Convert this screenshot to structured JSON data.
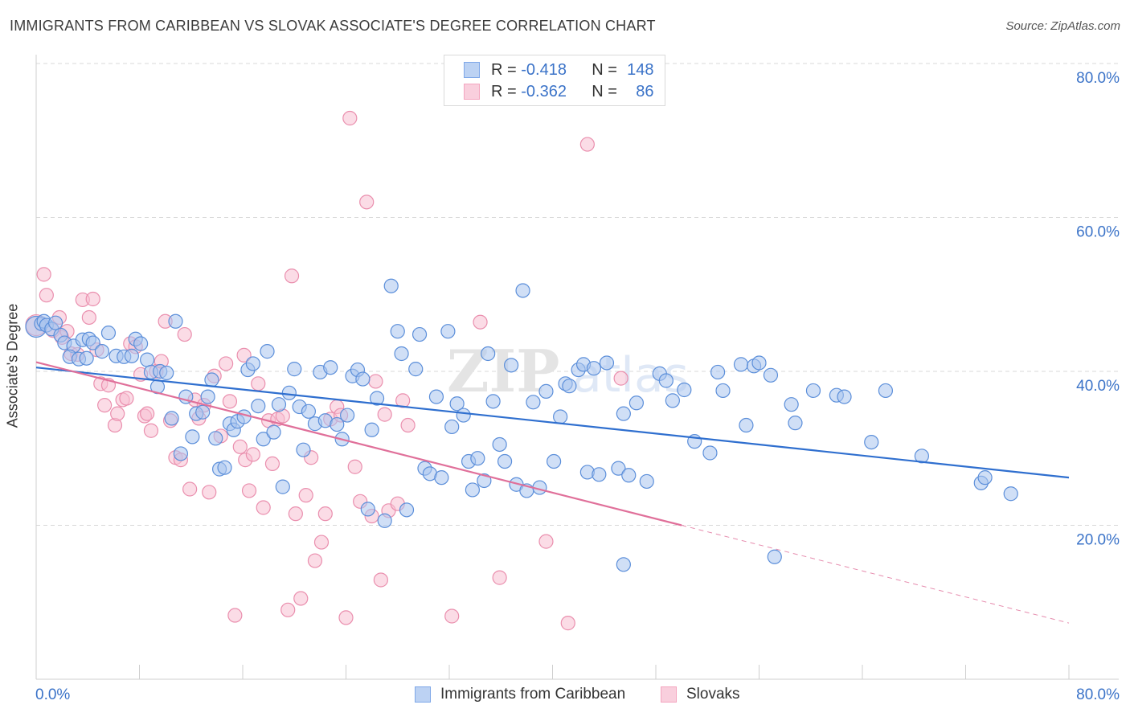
{
  "title": "IMMIGRANTS FROM CARIBBEAN VS SLOVAK ASSOCIATE'S DEGREE CORRELATION CHART",
  "source": "Source: ZipAtlas.com",
  "watermark": "ZIPatlas",
  "legend_top": [
    {
      "r_label": "R =",
      "r_value": "-0.418",
      "n_label": "N =",
      "n_value": "148",
      "color": "#7ea7e8"
    },
    {
      "r_label": "R =",
      "r_value": "-0.362",
      "n_label": "N =",
      "n_value": "86",
      "color": "#f4a5bf"
    }
  ],
  "legend_bottom": [
    {
      "label": "Immigrants from Caribbean",
      "color": "#7ea7e8"
    },
    {
      "label": "Slovaks",
      "color": "#f4a5bf"
    }
  ],
  "colors": {
    "blue_fill": "#a9c4ee",
    "blue_stroke": "#5c8fda",
    "blue_line": "#2f6fcf",
    "pink_fill": "#f7bfd1",
    "pink_stroke": "#ea8fae",
    "pink_line": "#e0709a",
    "axis_label": "#3b73c8",
    "grid": "#d8d8d8"
  },
  "chart_data": {
    "type": "scatter",
    "title": "IMMIGRANTS FROM CARIBBEAN VS SLOVAK ASSOCIATE'S DEGREE CORRELATION CHART",
    "xlabel": "",
    "ylabel": "Associate's Degree",
    "xlim": [
      0,
      80
    ],
    "ylim": [
      0,
      80
    ],
    "x_tick_labels": [
      "0.0%",
      "80.0%"
    ],
    "y_tick_labels": [
      "20.0%",
      "40.0%",
      "60.0%",
      "80.0%"
    ],
    "y_ticks": [
      20,
      40,
      60,
      80
    ],
    "grid": true,
    "legend_position": "bottom",
    "series": [
      {
        "name": "Immigrants from Caribbean",
        "trend": {
          "x": [
            0,
            80
          ],
          "y": [
            40.5,
            26.2
          ]
        },
        "points": [
          [
            0.0,
            45.8
          ],
          [
            0.4,
            46.2
          ],
          [
            0.6,
            46.5
          ],
          [
            0.8,
            46.0
          ],
          [
            1.2,
            45.5
          ],
          [
            1.5,
            46.3
          ],
          [
            1.9,
            44.7
          ],
          [
            2.2,
            43.7
          ],
          [
            2.9,
            43.3
          ],
          [
            2.6,
            41.9
          ],
          [
            3.3,
            41.6
          ],
          [
            3.9,
            41.7
          ],
          [
            3.6,
            44.1
          ],
          [
            4.1,
            44.2
          ],
          [
            4.4,
            43.7
          ],
          [
            5.1,
            42.6
          ],
          [
            5.6,
            45.0
          ],
          [
            6.2,
            42.0
          ],
          [
            6.8,
            41.9
          ],
          [
            7.4,
            42.0
          ],
          [
            7.7,
            44.2
          ],
          [
            8.1,
            43.6
          ],
          [
            8.6,
            41.5
          ],
          [
            8.9,
            39.9
          ],
          [
            9.4,
            38.0
          ],
          [
            9.6,
            40.0
          ],
          [
            10.1,
            39.8
          ],
          [
            10.5,
            33.9
          ],
          [
            10.8,
            46.5
          ],
          [
            11.2,
            29.3
          ],
          [
            11.6,
            36.7
          ],
          [
            12.1,
            31.5
          ],
          [
            12.4,
            34.5
          ],
          [
            12.9,
            34.7
          ],
          [
            13.3,
            36.7
          ],
          [
            13.6,
            38.9
          ],
          [
            13.9,
            31.3
          ],
          [
            14.2,
            27.3
          ],
          [
            14.6,
            27.5
          ],
          [
            15.0,
            33.2
          ],
          [
            15.3,
            32.4
          ],
          [
            15.6,
            33.5
          ],
          [
            16.1,
            34.1
          ],
          [
            16.4,
            40.2
          ],
          [
            16.8,
            41.0
          ],
          [
            17.2,
            35.5
          ],
          [
            17.6,
            31.2
          ],
          [
            17.9,
            42.6
          ],
          [
            18.4,
            32.1
          ],
          [
            18.8,
            35.7
          ],
          [
            19.1,
            25.0
          ],
          [
            19.6,
            37.2
          ],
          [
            20.0,
            40.3
          ],
          [
            20.4,
            35.4
          ],
          [
            20.7,
            29.8
          ],
          [
            21.1,
            34.8
          ],
          [
            21.6,
            33.2
          ],
          [
            22.0,
            39.9
          ],
          [
            22.4,
            33.6
          ],
          [
            22.8,
            40.5
          ],
          [
            23.3,
            33.1
          ],
          [
            23.7,
            31.2
          ],
          [
            24.1,
            34.3
          ],
          [
            24.5,
            39.4
          ],
          [
            24.9,
            40.2
          ],
          [
            25.3,
            39.0
          ],
          [
            25.7,
            22.1
          ],
          [
            26.0,
            32.4
          ],
          [
            26.4,
            36.5
          ],
          [
            27.0,
            20.6
          ],
          [
            27.5,
            51.1
          ],
          [
            28.0,
            45.2
          ],
          [
            28.3,
            42.3
          ],
          [
            28.7,
            22.0
          ],
          [
            29.4,
            40.3
          ],
          [
            29.7,
            44.8
          ],
          [
            30.1,
            27.4
          ],
          [
            30.5,
            26.7
          ],
          [
            31.0,
            36.7
          ],
          [
            31.4,
            26.2
          ],
          [
            31.9,
            45.2
          ],
          [
            32.2,
            32.8
          ],
          [
            32.6,
            35.8
          ],
          [
            33.1,
            34.3
          ],
          [
            33.5,
            28.3
          ],
          [
            33.8,
            24.6
          ],
          [
            34.2,
            28.7
          ],
          [
            34.7,
            25.8
          ],
          [
            35.0,
            42.3
          ],
          [
            35.4,
            36.1
          ],
          [
            35.9,
            30.5
          ],
          [
            36.3,
            28.3
          ],
          [
            36.8,
            40.8
          ],
          [
            37.2,
            25.3
          ],
          [
            37.7,
            50.5
          ],
          [
            38.0,
            24.5
          ],
          [
            38.5,
            36.0
          ],
          [
            39.0,
            24.9
          ],
          [
            39.5,
            37.4
          ],
          [
            40.1,
            28.3
          ],
          [
            40.6,
            34.1
          ],
          [
            41.0,
            38.4
          ],
          [
            41.3,
            38.1
          ],
          [
            42.0,
            40.2
          ],
          [
            42.4,
            40.9
          ],
          [
            42.7,
            26.9
          ],
          [
            43.2,
            40.4
          ],
          [
            43.6,
            26.6
          ],
          [
            44.2,
            41.1
          ],
          [
            45.1,
            27.4
          ],
          [
            45.5,
            34.5
          ],
          [
            45.9,
            26.5
          ],
          [
            46.5,
            35.9
          ],
          [
            47.3,
            25.7
          ],
          [
            48.3,
            39.7
          ],
          [
            48.8,
            38.8
          ],
          [
            49.3,
            36.2
          ],
          [
            50.2,
            37.6
          ],
          [
            51.0,
            30.9
          ],
          [
            52.2,
            29.4
          ],
          [
            52.8,
            39.9
          ],
          [
            53.2,
            37.5
          ],
          [
            54.6,
            40.9
          ],
          [
            55.0,
            33.0
          ],
          [
            55.6,
            40.7
          ],
          [
            56.0,
            41.1
          ],
          [
            56.9,
            39.5
          ],
          [
            58.5,
            35.7
          ],
          [
            58.8,
            33.3
          ],
          [
            60.2,
            37.5
          ],
          [
            62.0,
            36.9
          ],
          [
            62.6,
            36.7
          ],
          [
            64.7,
            30.8
          ],
          [
            65.8,
            37.5
          ],
          [
            68.6,
            29.0
          ],
          [
            73.2,
            25.5
          ],
          [
            73.5,
            26.2
          ],
          [
            75.5,
            24.1
          ],
          [
            57.2,
            15.9
          ],
          [
            45.5,
            14.9
          ]
        ]
      },
      {
        "name": "Slovaks",
        "trend": {
          "x": [
            0,
            50
          ],
          "y": [
            41.2,
            20.0
          ]
        },
        "trend_extension": {
          "x": [
            50,
            80
          ],
          "y": [
            20.0,
            7.3
          ]
        },
        "points": [
          [
            0.0,
            46.0
          ],
          [
            0.6,
            52.6
          ],
          [
            0.8,
            49.9
          ],
          [
            1.3,
            45.3
          ],
          [
            1.8,
            47.0
          ],
          [
            2.0,
            44.4
          ],
          [
            2.4,
            45.2
          ],
          [
            2.7,
            42.3
          ],
          [
            3.2,
            42.2
          ],
          [
            3.6,
            49.3
          ],
          [
            4.1,
            47.0
          ],
          [
            4.4,
            49.4
          ],
          [
            4.7,
            42.8
          ],
          [
            5.0,
            38.4
          ],
          [
            5.3,
            35.6
          ],
          [
            5.6,
            38.2
          ],
          [
            6.1,
            33.0
          ],
          [
            6.3,
            34.5
          ],
          [
            6.7,
            36.3
          ],
          [
            7.0,
            36.5
          ],
          [
            7.3,
            43.6
          ],
          [
            7.7,
            43.2
          ],
          [
            8.1,
            39.6
          ],
          [
            8.4,
            34.2
          ],
          [
            8.6,
            34.5
          ],
          [
            8.9,
            32.3
          ],
          [
            9.3,
            40.0
          ],
          [
            9.7,
            41.3
          ],
          [
            10.0,
            46.5
          ],
          [
            10.4,
            33.6
          ],
          [
            10.8,
            28.8
          ],
          [
            11.2,
            28.5
          ],
          [
            11.5,
            44.8
          ],
          [
            11.9,
            24.7
          ],
          [
            12.3,
            36.3
          ],
          [
            12.6,
            33.9
          ],
          [
            13.0,
            35.6
          ],
          [
            13.4,
            24.3
          ],
          [
            13.8,
            39.4
          ],
          [
            14.3,
            31.6
          ],
          [
            14.7,
            41.0
          ],
          [
            15.0,
            36.1
          ],
          [
            15.4,
            8.3
          ],
          [
            15.8,
            30.2
          ],
          [
            16.2,
            28.5
          ],
          [
            16.5,
            24.5
          ],
          [
            16.8,
            29.2
          ],
          [
            17.2,
            38.4
          ],
          [
            17.6,
            22.3
          ],
          [
            18.0,
            33.6
          ],
          [
            18.3,
            28.0
          ],
          [
            18.7,
            33.8
          ],
          [
            19.1,
            34.2
          ],
          [
            19.5,
            9.0
          ],
          [
            19.8,
            52.4
          ],
          [
            20.1,
            21.5
          ],
          [
            20.5,
            10.5
          ],
          [
            20.9,
            23.9
          ],
          [
            21.3,
            28.8
          ],
          [
            21.6,
            15.4
          ],
          [
            22.1,
            17.8
          ],
          [
            22.4,
            21.5
          ],
          [
            22.8,
            33.8
          ],
          [
            23.3,
            35.4
          ],
          [
            23.6,
            34.3
          ],
          [
            24.0,
            8.0
          ],
          [
            24.3,
            72.9
          ],
          [
            24.7,
            27.6
          ],
          [
            25.1,
            23.1
          ],
          [
            25.6,
            62.0
          ],
          [
            26.0,
            21.2
          ],
          [
            26.3,
            38.7
          ],
          [
            26.7,
            12.9
          ],
          [
            27.0,
            34.4
          ],
          [
            27.3,
            21.9
          ],
          [
            28.0,
            22.8
          ],
          [
            28.4,
            36.2
          ],
          [
            28.8,
            33.0
          ],
          [
            32.2,
            8.2
          ],
          [
            34.4,
            46.4
          ],
          [
            35.9,
            13.2
          ],
          [
            39.5,
            17.9
          ],
          [
            41.2,
            7.3
          ],
          [
            42.7,
            69.5
          ],
          [
            16.1,
            42.1
          ],
          [
            45.3,
            39.1
          ]
        ]
      }
    ]
  }
}
